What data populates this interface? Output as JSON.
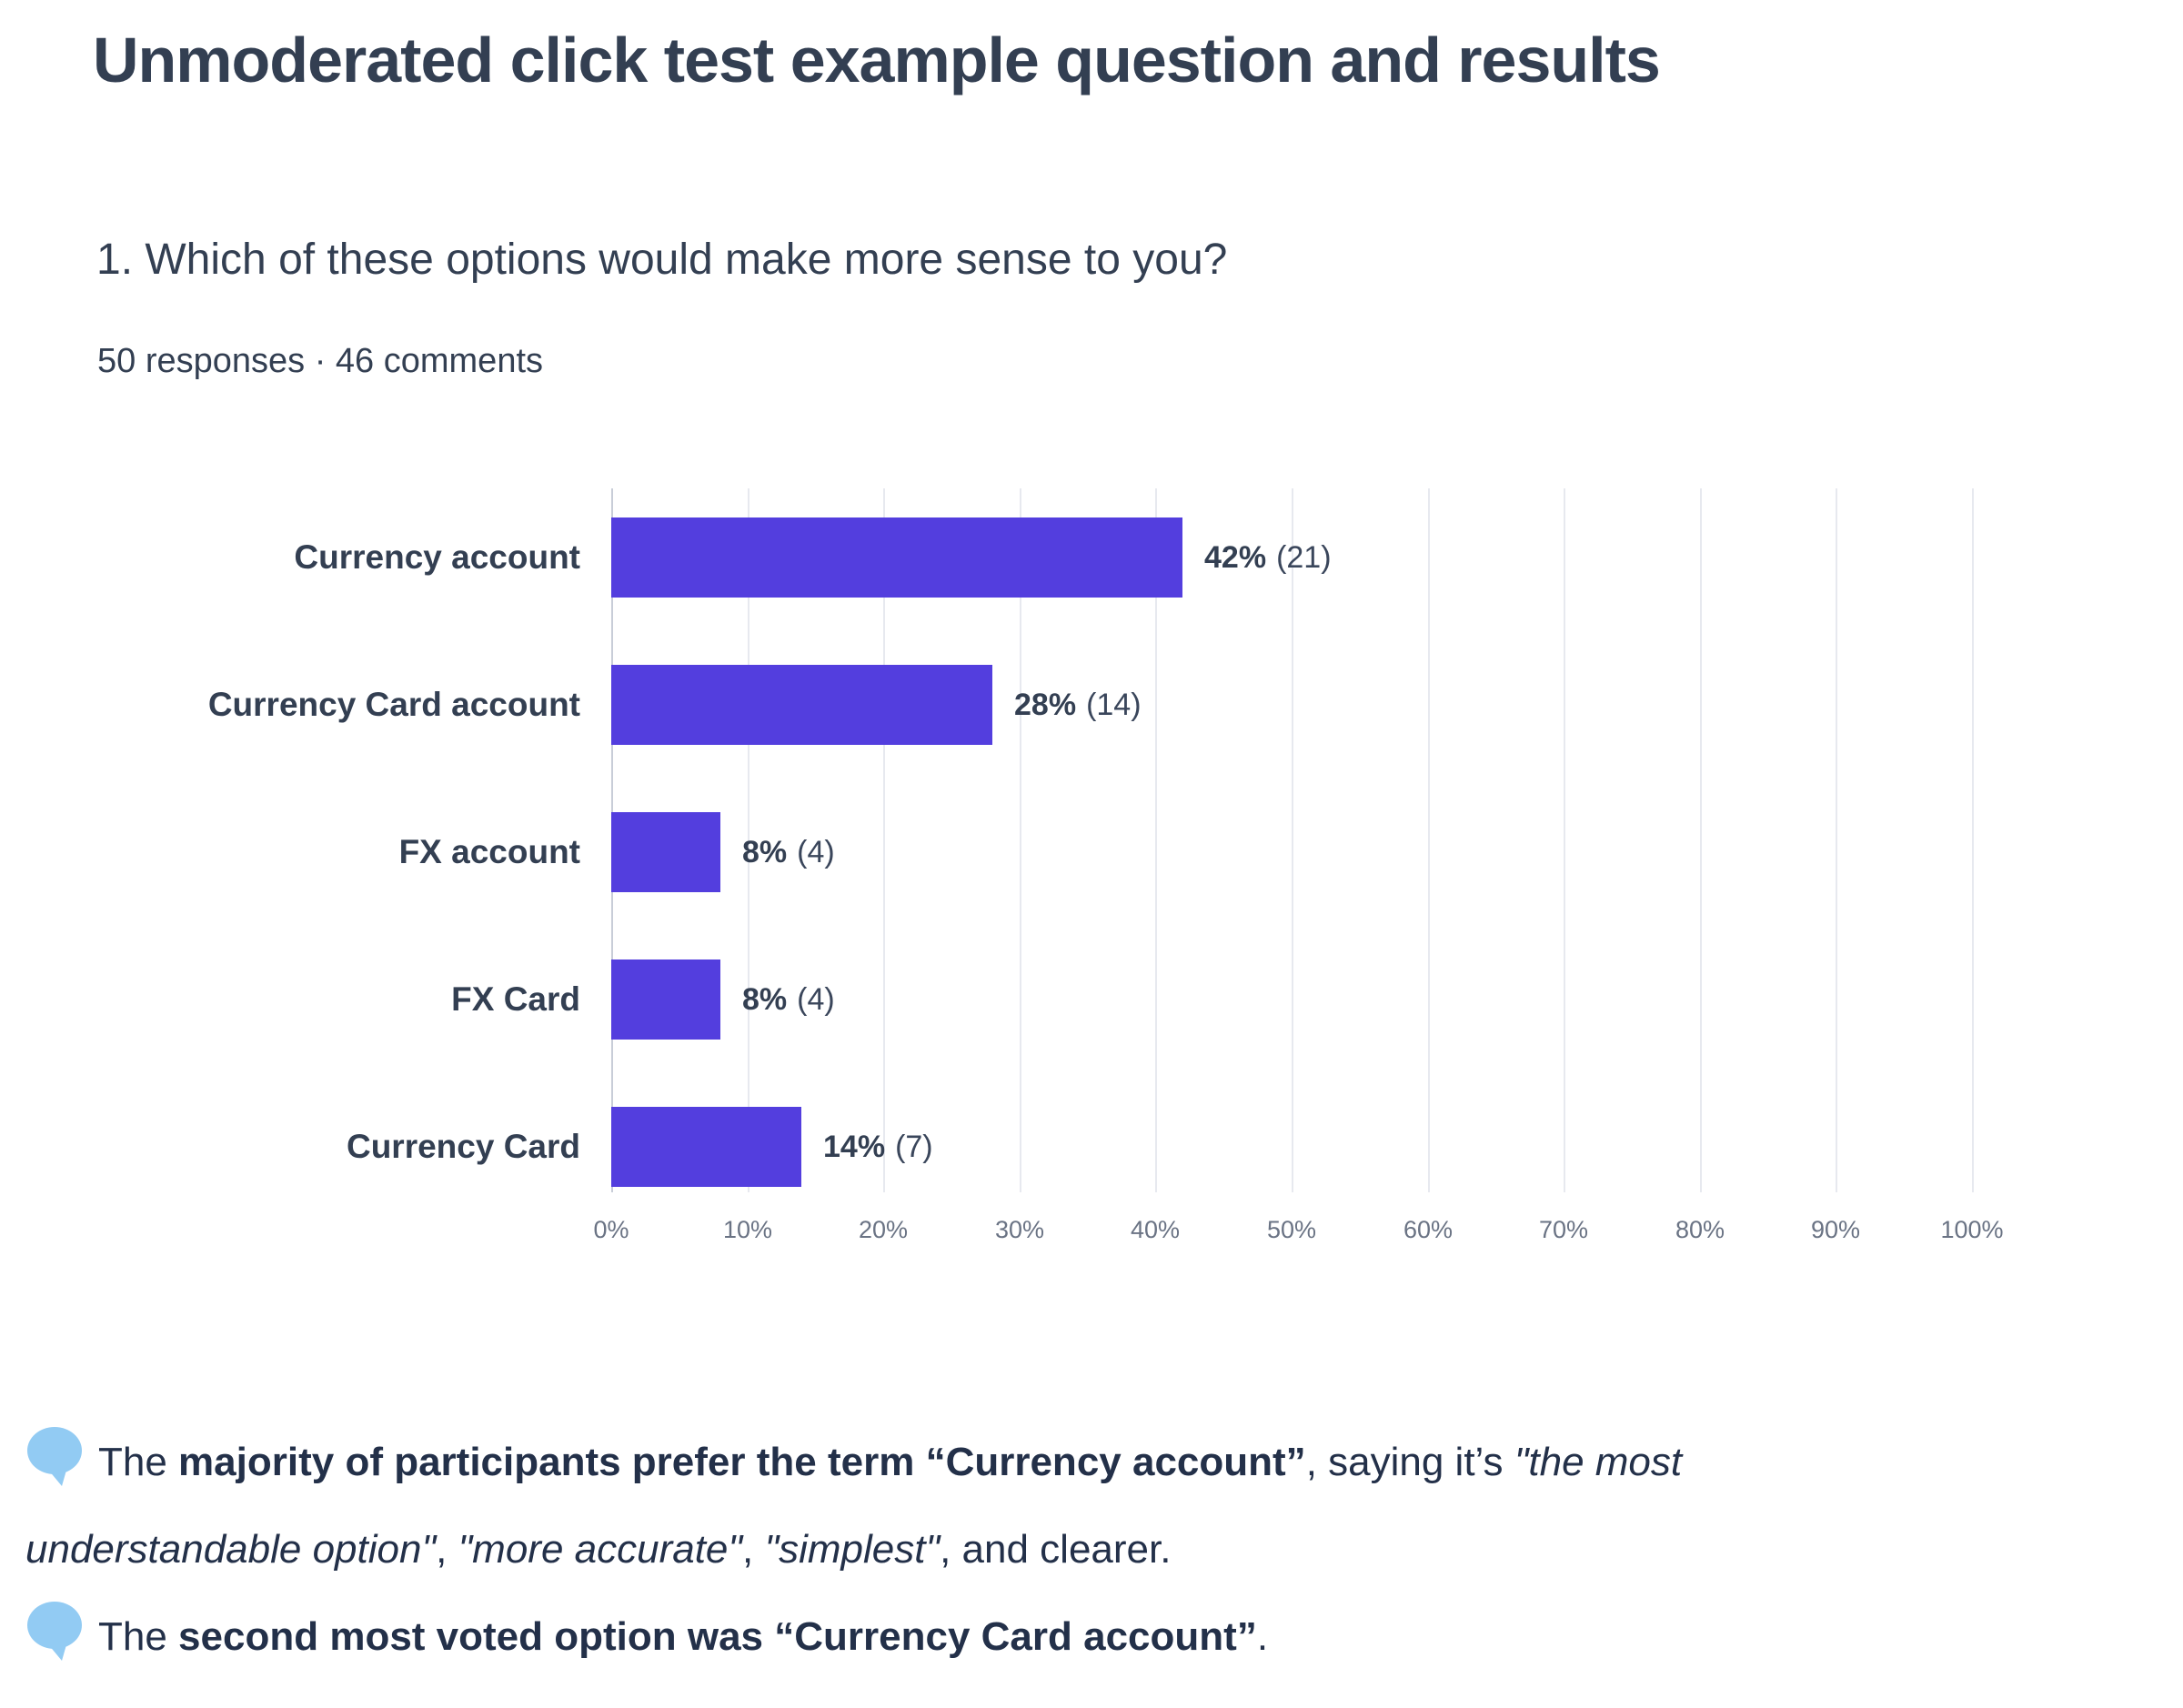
{
  "title": "Unmoderated click test example question and results",
  "question": {
    "text": "1. Which of these options would make more sense to you?",
    "meta": "50 responses · 46 comments"
  },
  "chart_data": {
    "type": "bar",
    "orientation": "horizontal",
    "categories": [
      "Currency account",
      "Currency Card account",
      "FX account",
      "FX Card",
      "Currency Card"
    ],
    "values": [
      42,
      28,
      8,
      8,
      14
    ],
    "counts": [
      21,
      14,
      4,
      4,
      7
    ],
    "value_labels": [
      {
        "pct": "42%",
        "count": "(21)"
      },
      {
        "pct": "28%",
        "count": "(14)"
      },
      {
        "pct": "8%",
        "count": "(4)"
      },
      {
        "pct": "8%",
        "count": "(4)"
      },
      {
        "pct": "14%",
        "count": "(7)"
      }
    ],
    "x_ticks": [
      "0%",
      "10%",
      "20%",
      "30%",
      "40%",
      "50%",
      "60%",
      "70%",
      "80%",
      "90%",
      "100%"
    ],
    "xlim": [
      0,
      100
    ],
    "grid": true,
    "legend": "none",
    "bar_color": "#533EDE"
  },
  "insights": [
    {
      "icon": "speech-bubble",
      "segments": [
        {
          "t": "The ",
          "s": "r"
        },
        {
          "t": "majority of participants prefer the term “Currency account”",
          "s": "b"
        },
        {
          "t": ", saying it’s ",
          "s": "r"
        },
        {
          "t": "\"the most understandable option\"",
          "s": "i"
        },
        {
          "t": ", ",
          "s": "r"
        },
        {
          "t": "\"more accurate\"",
          "s": "i"
        },
        {
          "t": ", ",
          "s": "r"
        },
        {
          "t": "\"simplest\"",
          "s": "i"
        },
        {
          "t": ", and clearer.",
          "s": "r"
        }
      ]
    },
    {
      "icon": "speech-bubble",
      "segments": [
        {
          "t": "The ",
          "s": "r"
        },
        {
          "t": "second most voted option was “Currency Card account”",
          "s": "b"
        },
        {
          "t": ".",
          "s": "r"
        }
      ]
    }
  ],
  "colors": {
    "bar": "#533EDE",
    "text_dark": "#333F52",
    "insight_text": "#233049",
    "tick": "#6A7384",
    "gridline": "#E7E9EF",
    "axis_line": "#C8CDD8",
    "bubble": "#92CBF3"
  }
}
